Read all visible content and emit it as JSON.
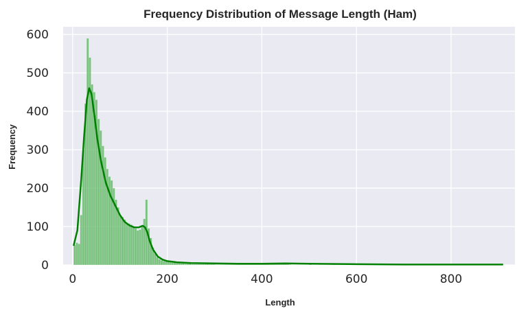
{
  "chart_data": {
    "type": "bar",
    "subtype": "histogram-with-kde",
    "title": "Frequency Distribution of Message Length (Ham)",
    "xlabel": "Length",
    "ylabel": "Frequency",
    "xlim": [
      -20,
      935
    ],
    "ylim": [
      0,
      620
    ],
    "xticks": [
      0,
      200,
      400,
      600,
      800
    ],
    "yticks": [
      0,
      100,
      200,
      300,
      400,
      500,
      600
    ],
    "grid": true,
    "legend": "none",
    "colors": {
      "background": "#eaeaf2",
      "grid": "#ffffff",
      "bars": "#4caf50",
      "kde": "#008000"
    },
    "bin_width": 4.6,
    "bins": [
      [
        2,
        52
      ],
      [
        6.6,
        58
      ],
      [
        11.2,
        55
      ],
      [
        15.8,
        130
      ],
      [
        20.4,
        300
      ],
      [
        25,
        420
      ],
      [
        29.6,
        590
      ],
      [
        34.2,
        540
      ],
      [
        38.8,
        470
      ],
      [
        43.4,
        450
      ],
      [
        48,
        430
      ],
      [
        52.6,
        380
      ],
      [
        57.2,
        350
      ],
      [
        61.8,
        310
      ],
      [
        66.4,
        280
      ],
      [
        71,
        250
      ],
      [
        75.6,
        230
      ],
      [
        80.2,
        220
      ],
      [
        84.8,
        200
      ],
      [
        89.4,
        170
      ],
      [
        94,
        150
      ],
      [
        98.6,
        130
      ],
      [
        103.2,
        125
      ],
      [
        107.8,
        118
      ],
      [
        112.4,
        110
      ],
      [
        117,
        108
      ],
      [
        121.6,
        105
      ],
      [
        126.2,
        100
      ],
      [
        130.8,
        95
      ],
      [
        135.4,
        90
      ],
      [
        140,
        92
      ],
      [
        144.6,
        100
      ],
      [
        149.2,
        120
      ],
      [
        153.8,
        170
      ],
      [
        158.4,
        95
      ],
      [
        163,
        70
      ],
      [
        167.6,
        45
      ],
      [
        172.2,
        30
      ],
      [
        176.8,
        20
      ],
      [
        181.4,
        15
      ],
      [
        186,
        12
      ],
      [
        190.6,
        10
      ],
      [
        195.2,
        9
      ],
      [
        199.8,
        8
      ],
      [
        204.4,
        7
      ],
      [
        209,
        6
      ],
      [
        213.6,
        6
      ],
      [
        218.2,
        5
      ],
      [
        222.8,
        5
      ],
      [
        227.4,
        4
      ],
      [
        232,
        4
      ],
      [
        236.6,
        3
      ],
      [
        241.2,
        3
      ],
      [
        245.8,
        3
      ],
      [
        250.4,
        2
      ],
      [
        255,
        2
      ],
      [
        259.6,
        2
      ],
      [
        264.2,
        2
      ],
      [
        268.8,
        2
      ],
      [
        273.4,
        2
      ],
      [
        278,
        2
      ],
      [
        282.6,
        3
      ],
      [
        287.2,
        2
      ],
      [
        291.8,
        2
      ],
      [
        296.4,
        2
      ],
      [
        301,
        1
      ],
      [
        305.6,
        1
      ],
      [
        310.2,
        1
      ],
      [
        314.8,
        1
      ],
      [
        319.4,
        1
      ],
      [
        324,
        1
      ],
      [
        328.6,
        1
      ],
      [
        333.2,
        1
      ],
      [
        337.8,
        1
      ],
      [
        342.4,
        1
      ],
      [
        347,
        1
      ],
      [
        351.6,
        1
      ],
      [
        356.2,
        1
      ],
      [
        360.8,
        1
      ],
      [
        365.4,
        1
      ],
      [
        370,
        1
      ],
      [
        374.6,
        1
      ],
      [
        379.2,
        1
      ],
      [
        383.8,
        1
      ],
      [
        388.4,
        1
      ],
      [
        393,
        1
      ],
      [
        397.6,
        1
      ],
      [
        402.2,
        2
      ],
      [
        406.8,
        2
      ],
      [
        411.4,
        2
      ],
      [
        416,
        2
      ],
      [
        420.6,
        2
      ],
      [
        425.2,
        2
      ],
      [
        429.8,
        2
      ],
      [
        434.4,
        2
      ],
      [
        439,
        2
      ],
      [
        443.6,
        3
      ],
      [
        448.2,
        3
      ],
      [
        452.8,
        2
      ],
      [
        457.4,
        1
      ],
      [
        500,
        1
      ],
      [
        550,
        1
      ],
      [
        600,
        1
      ],
      [
        650,
        1
      ],
      [
        700,
        1
      ],
      [
        750,
        1
      ],
      [
        800,
        1
      ],
      [
        850,
        1
      ],
      [
        905,
        1
      ]
    ],
    "kde": {
      "x": [
        2,
        10,
        18,
        24,
        30,
        35,
        40,
        46,
        52,
        60,
        70,
        80,
        90,
        100,
        110,
        120,
        130,
        140,
        148,
        153,
        158,
        163,
        170,
        180,
        190,
        200,
        220,
        250,
        300,
        350,
        400,
        450,
        500,
        600,
        700,
        800,
        910
      ],
      "y": [
        50,
        90,
        220,
        330,
        430,
        460,
        445,
        390,
        330,
        270,
        215,
        180,
        155,
        130,
        112,
        103,
        98,
        98,
        102,
        98,
        85,
        62,
        40,
        22,
        14,
        10,
        7,
        5,
        4,
        3,
        3,
        4,
        3,
        2,
        1,
        1,
        1
      ]
    }
  }
}
